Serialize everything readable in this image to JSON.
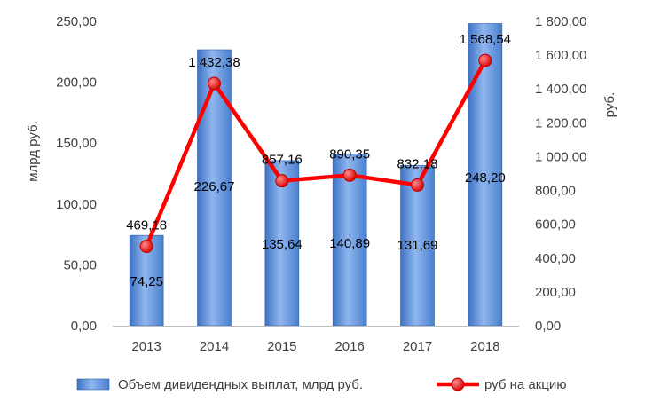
{
  "chart_data": {
    "type": "bar",
    "categories": [
      "2013",
      "2014",
      "2015",
      "2016",
      "2017",
      "2018"
    ],
    "series": [
      {
        "name": "Объем дивидендных выплат, млрд руб.",
        "type": "bar",
        "axis": "left",
        "values": [
          74.25,
          226.67,
          135.64,
          140.89,
          131.69,
          248.2
        ],
        "labels": [
          "74,25",
          "226,67",
          "135,64",
          "140,89",
          "131,69",
          "248,20"
        ],
        "color": "#5b8fd6"
      },
      {
        "name": "руб на акцию",
        "type": "line",
        "axis": "right",
        "values": [
          469.18,
          1432.38,
          857.16,
          890.35,
          832.18,
          1568.54
        ],
        "labels": [
          "469,18",
          "1 432,38",
          "857,16",
          "890,35",
          "832,18",
          "1 568,54"
        ],
        "color": "#ff0000"
      }
    ],
    "left_axis": {
      "label": "млрд руб.",
      "ylim": [
        0,
        250
      ],
      "ticks": [
        "0,00",
        "50,00",
        "100,00",
        "150,00",
        "200,00",
        "250,00"
      ]
    },
    "right_axis": {
      "label": "руб.",
      "ylim": [
        0,
        1800
      ],
      "ticks": [
        "0,00",
        "200,00",
        "400,00",
        "600,00",
        "800,00",
        "1 000,00",
        "1 200,00",
        "1 400,00",
        "1 600,00",
        "1 800,00"
      ]
    },
    "grid": false,
    "legend": "bottom"
  }
}
